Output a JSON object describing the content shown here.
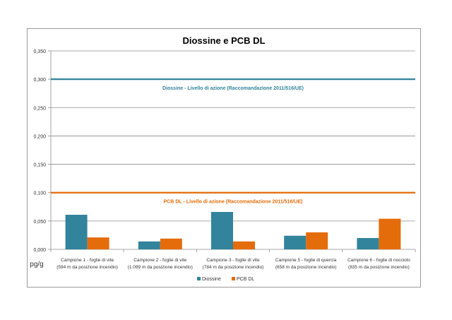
{
  "chart_data": {
    "type": "bar",
    "title": "Diossine e PCB DL",
    "xlabel": "",
    "ylabel": "pg/g",
    "ylim": [
      0,
      0.35
    ],
    "yticks": [
      "0,000",
      "0,050",
      "0,100",
      "0,150",
      "0,200",
      "0,250",
      "0,300",
      "0,350"
    ],
    "ytick_values": [
      0,
      0.05,
      0.1,
      0.15,
      0.2,
      0.25,
      0.3,
      0.35
    ],
    "grid": true,
    "legend_position": "bottom",
    "categories": [
      [
        "Campione 1 - foglie di vite",
        "(594 m da posizione incendio)"
      ],
      [
        "Campione 2 - foglie di vite",
        "(1.099 m da posizione incendio)"
      ],
      [
        "Campione 3 - foglie di vite",
        "(784 m da posizione incendio)"
      ],
      [
        "Campione 5 - foglie di quercia",
        "(658 m da posizione incendio)"
      ],
      [
        "Campione 6 - foglie di nocciolo",
        "(835 m da posizione incendio)"
      ]
    ],
    "series": [
      {
        "name": "Diossine",
        "color": "#31849b",
        "values": [
          0.061,
          0.014,
          0.066,
          0.024,
          0.02
        ]
      },
      {
        "name": "PCB DL",
        "color": "#e46c0a",
        "values": [
          0.021,
          0.019,
          0.014,
          0.03,
          0.054
        ]
      }
    ],
    "reference_lines": [
      {
        "label": "Diossine - Livello di azione (Raccomandazione 2011/516/UE)",
        "value": 0.3,
        "color": "#31849b"
      },
      {
        "label": "PCB DL - Livello di azione (Raccomandazione 2011/516/UE)",
        "value": 0.1,
        "color": "#e46c0a"
      }
    ]
  }
}
